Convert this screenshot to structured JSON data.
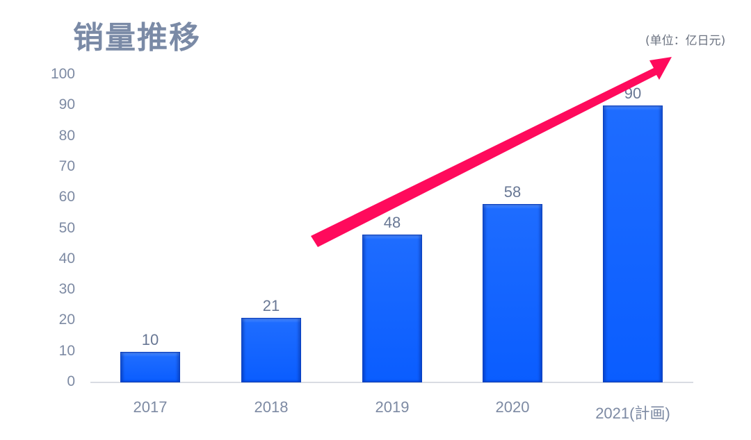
{
  "title": "销量推移",
  "unit_label": "(单位：亿日元)",
  "colors": {
    "bar": "#0a5dff",
    "arrow": "#ff0a5c",
    "text": "#7d8aa3",
    "title": "#7a8aa6"
  },
  "chart_data": {
    "type": "bar",
    "title": "销量推移",
    "subtitle": "(单位：亿日元)",
    "categories": [
      "2017",
      "2018",
      "2019",
      "2020",
      "2021(計画)"
    ],
    "values": [
      10,
      21,
      48,
      58,
      90
    ],
    "xlabel": "",
    "ylabel": "",
    "ylim": [
      0,
      100
    ],
    "yticks": [
      0,
      10,
      20,
      30,
      40,
      50,
      60,
      70,
      80,
      90,
      100
    ],
    "grid": false,
    "legend": null,
    "annotations": [
      {
        "type": "arrow",
        "description": "upward trend arrow",
        "color": "#ff0a5c"
      }
    ]
  }
}
